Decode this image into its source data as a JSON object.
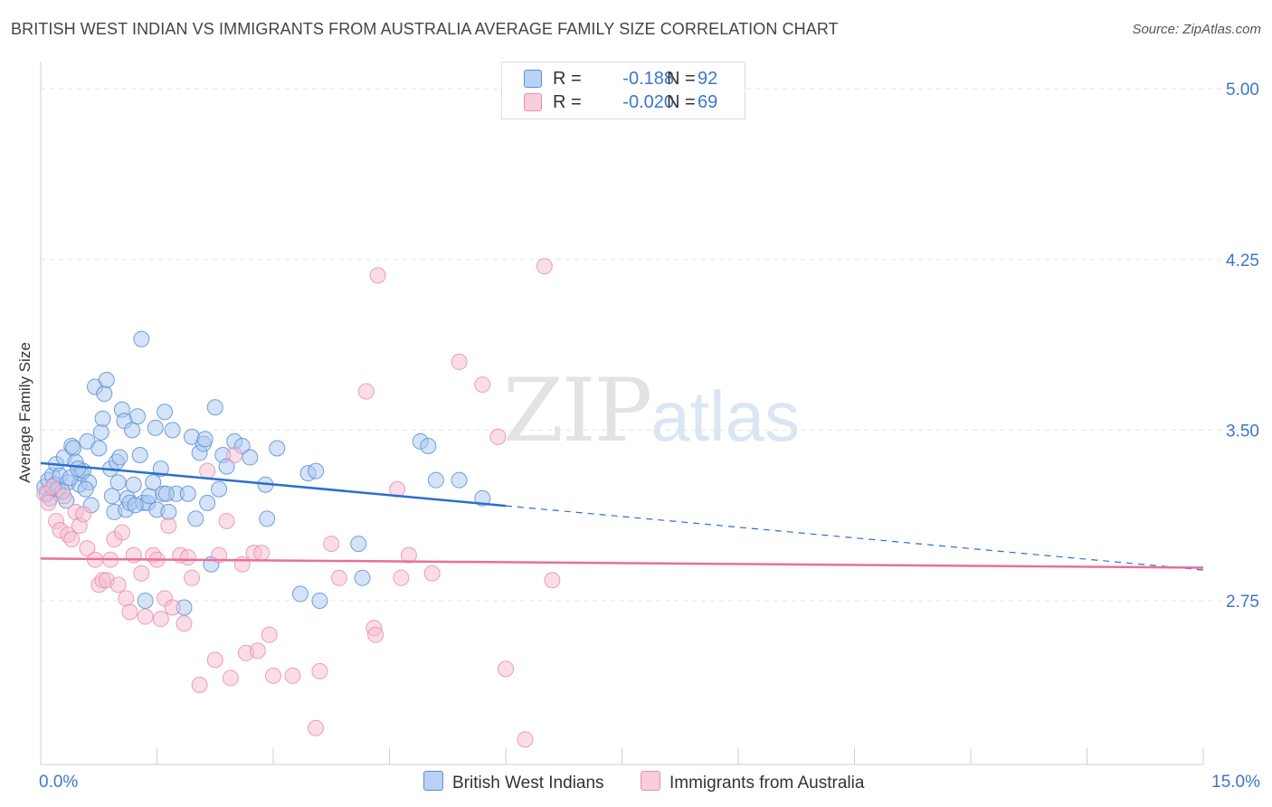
{
  "title": "BRITISH WEST INDIAN VS IMMIGRANTS FROM AUSTRALIA AVERAGE FAMILY SIZE CORRELATION CHART",
  "source": "Source: ZipAtlas.com",
  "watermark": {
    "zip": "ZIP",
    "atlas": "atlas"
  },
  "legend_top": {
    "rows": [
      {
        "label": "R =",
        "r_value": "-0.188",
        "n_label": "N =",
        "n_value": "92"
      },
      {
        "label": "R =",
        "r_value": "-0.020",
        "n_label": "N =",
        "n_value": "69"
      }
    ]
  },
  "legend_bottom": {
    "series1": "British West Indians",
    "series2": "Immigrants from Australia"
  },
  "colors": {
    "blue_fill": "#a9c8f0",
    "blue_stroke": "#5b8fd6",
    "blue_line": "#2a6fd0",
    "pink_fill": "#f7bcd0",
    "pink_stroke": "#e88fae",
    "pink_line": "#e8709a",
    "accent_text": "#3d76cc",
    "grid": "#e4e4e4"
  },
  "chart_data": {
    "type": "scatter",
    "title": "BRITISH WEST INDIAN VS IMMIGRANTS FROM AUSTRALIA AVERAGE FAMILY SIZE CORRELATION CHART",
    "xlabel": "",
    "ylabel": "Average Family Size",
    "xlim": [
      0,
      15
    ],
    "ylim": [
      2.03,
      5.12
    ],
    "x_tick_labels": [
      "0.0%",
      "15.0%"
    ],
    "y_ticks": [
      2.75,
      3.5,
      4.25,
      5.0
    ],
    "y_tick_labels": [
      "2.75",
      "3.50",
      "4.25",
      "5.00"
    ],
    "grid": "horizontal-dashed",
    "legend_position": "top-center",
    "series": [
      {
        "name": "British West Indians",
        "color": "#5b8fd6",
        "r": -0.188,
        "n": 92,
        "trend": {
          "x": [
            0,
            15
          ],
          "y": [
            3.355,
            2.885
          ],
          "solid_until_x": 6.0
        },
        "points": [
          [
            0.05,
            3.25
          ],
          [
            0.08,
            3.22
          ],
          [
            0.1,
            3.28
          ],
          [
            0.12,
            3.2
          ],
          [
            0.15,
            3.3
          ],
          [
            0.18,
            3.26
          ],
          [
            0.2,
            3.35
          ],
          [
            0.22,
            3.24
          ],
          [
            0.25,
            3.3
          ],
          [
            0.3,
            3.38
          ],
          [
            0.33,
            3.19
          ],
          [
            0.35,
            3.27
          ],
          [
            0.4,
            3.43
          ],
          [
            0.42,
            3.42
          ],
          [
            0.45,
            3.36
          ],
          [
            0.5,
            3.26
          ],
          [
            0.52,
            3.31
          ],
          [
            0.55,
            3.32
          ],
          [
            0.6,
            3.45
          ],
          [
            0.62,
            3.27
          ],
          [
            0.65,
            3.17
          ],
          [
            0.7,
            3.69
          ],
          [
            0.75,
            3.42
          ],
          [
            0.78,
            3.49
          ],
          [
            0.8,
            3.55
          ],
          [
            0.82,
            3.66
          ],
          [
            0.85,
            3.72
          ],
          [
            0.9,
            3.33
          ],
          [
            0.92,
            3.21
          ],
          [
            0.95,
            3.14
          ],
          [
            0.98,
            3.36
          ],
          [
            1.0,
            3.27
          ],
          [
            1.02,
            3.38
          ],
          [
            1.05,
            3.59
          ],
          [
            1.08,
            3.54
          ],
          [
            1.1,
            3.15
          ],
          [
            1.12,
            3.2
          ],
          [
            1.15,
            3.18
          ],
          [
            1.18,
            3.5
          ],
          [
            1.2,
            3.26
          ],
          [
            1.25,
            3.56
          ],
          [
            1.28,
            3.39
          ],
          [
            1.3,
            3.9
          ],
          [
            1.32,
            3.18
          ],
          [
            1.35,
            2.75
          ],
          [
            1.38,
            3.18
          ],
          [
            1.4,
            3.21
          ],
          [
            1.45,
            3.27
          ],
          [
            1.48,
            3.51
          ],
          [
            1.5,
            3.15
          ],
          [
            1.55,
            3.33
          ],
          [
            1.58,
            3.22
          ],
          [
            1.6,
            3.58
          ],
          [
            1.65,
            3.14
          ],
          [
            1.7,
            3.5
          ],
          [
            1.75,
            3.22
          ],
          [
            1.85,
            2.72
          ],
          [
            1.9,
            3.22
          ],
          [
            1.95,
            3.47
          ],
          [
            2.0,
            3.11
          ],
          [
            2.05,
            3.4
          ],
          [
            2.1,
            3.44
          ],
          [
            2.15,
            3.18
          ],
          [
            2.2,
            2.91
          ],
          [
            2.25,
            3.6
          ],
          [
            2.3,
            3.24
          ],
          [
            2.35,
            3.39
          ],
          [
            2.4,
            3.34
          ],
          [
            2.5,
            3.45
          ],
          [
            2.6,
            3.43
          ],
          [
            2.7,
            3.38
          ],
          [
            2.9,
            3.26
          ],
          [
            2.92,
            3.11
          ],
          [
            3.05,
            3.42
          ],
          [
            3.35,
            2.78
          ],
          [
            3.45,
            3.31
          ],
          [
            3.55,
            3.32
          ],
          [
            3.6,
            2.75
          ],
          [
            4.1,
            3.0
          ],
          [
            4.15,
            2.85
          ],
          [
            4.9,
            3.45
          ],
          [
            5.0,
            3.43
          ],
          [
            5.1,
            3.28
          ],
          [
            5.4,
            3.28
          ],
          [
            5.7,
            3.2
          ],
          [
            0.28,
            3.23
          ],
          [
            0.38,
            3.29
          ],
          [
            0.58,
            3.24
          ],
          [
            1.22,
            3.17
          ],
          [
            1.62,
            3.22
          ],
          [
            2.12,
            3.46
          ],
          [
            0.48,
            3.33
          ]
        ]
      },
      {
        "name": "Immigrants from Australia",
        "color": "#e88fae",
        "r": -0.02,
        "n": 69,
        "trend": {
          "x": [
            0,
            15
          ],
          "y": [
            2.935,
            2.895
          ]
        },
        "points": [
          [
            0.05,
            3.22
          ],
          [
            0.1,
            3.18
          ],
          [
            0.15,
            3.25
          ],
          [
            0.2,
            3.1
          ],
          [
            0.25,
            3.06
          ],
          [
            0.3,
            3.21
          ],
          [
            0.35,
            3.04
          ],
          [
            0.4,
            3.02
          ],
          [
            0.45,
            3.14
          ],
          [
            0.5,
            3.08
          ],
          [
            0.55,
            3.13
          ],
          [
            0.6,
            2.98
          ],
          [
            0.7,
            2.93
          ],
          [
            0.75,
            2.82
          ],
          [
            0.8,
            2.84
          ],
          [
            0.85,
            2.84
          ],
          [
            0.9,
            2.93
          ],
          [
            0.95,
            3.02
          ],
          [
            1.0,
            2.82
          ],
          [
            1.05,
            3.05
          ],
          [
            1.1,
            2.76
          ],
          [
            1.15,
            2.7
          ],
          [
            1.2,
            2.95
          ],
          [
            1.3,
            2.87
          ],
          [
            1.35,
            2.68
          ],
          [
            1.45,
            2.95
          ],
          [
            1.5,
            2.93
          ],
          [
            1.55,
            2.67
          ],
          [
            1.6,
            2.76
          ],
          [
            1.65,
            3.08
          ],
          [
            1.7,
            2.72
          ],
          [
            1.8,
            2.95
          ],
          [
            1.85,
            2.65
          ],
          [
            1.9,
            2.94
          ],
          [
            1.95,
            2.85
          ],
          [
            2.05,
            2.38
          ],
          [
            2.15,
            3.32
          ],
          [
            2.25,
            2.49
          ],
          [
            2.3,
            2.95
          ],
          [
            2.4,
            3.1
          ],
          [
            2.45,
            2.41
          ],
          [
            2.5,
            3.39
          ],
          [
            2.6,
            2.91
          ],
          [
            2.65,
            2.52
          ],
          [
            2.75,
            2.96
          ],
          [
            2.8,
            2.53
          ],
          [
            2.85,
            2.96
          ],
          [
            2.95,
            2.6
          ],
          [
            3.0,
            2.42
          ],
          [
            3.25,
            2.42
          ],
          [
            3.55,
            2.19
          ],
          [
            3.6,
            2.44
          ],
          [
            3.75,
            3.0
          ],
          [
            3.85,
            2.85
          ],
          [
            4.2,
            3.67
          ],
          [
            4.3,
            2.63
          ],
          [
            4.32,
            2.6
          ],
          [
            4.35,
            4.18
          ],
          [
            4.6,
            3.24
          ],
          [
            4.65,
            2.85
          ],
          [
            4.75,
            2.95
          ],
          [
            5.05,
            2.87
          ],
          [
            5.4,
            3.8
          ],
          [
            5.7,
            3.7
          ],
          [
            5.9,
            3.47
          ],
          [
            6.0,
            2.45
          ],
          [
            6.25,
            2.14
          ],
          [
            6.5,
            4.22
          ],
          [
            6.6,
            2.84
          ]
        ]
      }
    ]
  }
}
